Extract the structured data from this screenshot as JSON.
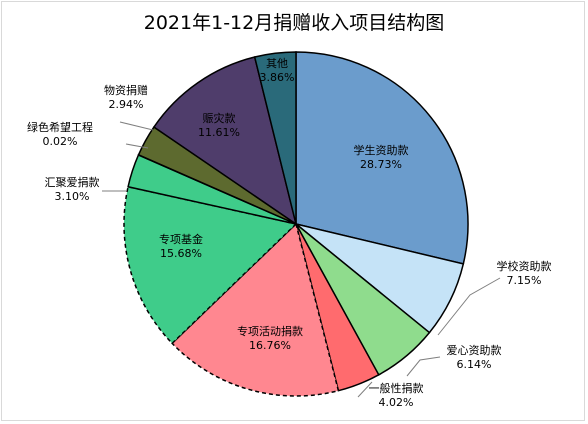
{
  "chart_data": {
    "type": "pie",
    "title": "2021年1-12月捐赠收入项目结构图",
    "start_angle_deg": 0,
    "direction": "clockwise",
    "slices": [
      {
        "label": "学生资助款",
        "value": 28.73,
        "value_text": "28.73%",
        "color": "#6b9ccc",
        "outline": "solid"
      },
      {
        "label": "学校资助款",
        "value": 7.15,
        "value_text": "7.15%",
        "color": "#c5e3f7",
        "outline": "solid"
      },
      {
        "label": "爱心资助款",
        "value": 6.14,
        "value_text": "6.14%",
        "color": "#8fdc8d",
        "outline": "solid"
      },
      {
        "label": "一般性捐款",
        "value": 4.02,
        "value_text": "4.02%",
        "color": "#ff6b6e",
        "outline": "solid"
      },
      {
        "label": "专项活动捐款",
        "value": 16.76,
        "value_text": "16.76%",
        "color": "#ff8790",
        "outline": "dashed"
      },
      {
        "label": "专项基金",
        "value": 15.68,
        "value_text": "15.68%",
        "color": "#3fcc8a",
        "outline": "dashed"
      },
      {
        "label": "汇聚爱捐款",
        "value": 3.1,
        "value_text": "3.10%",
        "color": "#3fcc8a",
        "outline": "solid"
      },
      {
        "label": "绿色希望工程",
        "value": 0.02,
        "value_text": "0.02%",
        "color": "#4e7a3a",
        "outline": "solid"
      },
      {
        "label": "物资捐赠",
        "value": 2.94,
        "value_text": "2.94%",
        "color": "#5d6a2f",
        "outline": "solid"
      },
      {
        "label": "赈灾款",
        "value": 11.61,
        "value_text": "11.61%",
        "color": "#4f3d6b",
        "outline": "solid"
      },
      {
        "label": "其他",
        "value": 3.86,
        "value_text": "3.86%",
        "color": "#2a6a7a",
        "outline": "solid"
      }
    ]
  }
}
